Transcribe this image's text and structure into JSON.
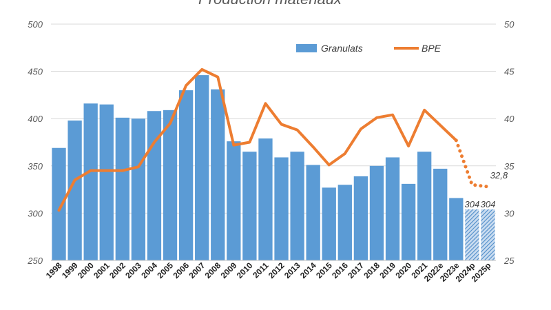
{
  "chart_data": {
    "type": "bar+line",
    "title": "Production matériaux",
    "categories": [
      "1998",
      "1999",
      "2000",
      "2001",
      "2002",
      "2003",
      "2004",
      "2005",
      "2006",
      "2007",
      "2008",
      "2009",
      "2010",
      "2011",
      "2012",
      "2013",
      "2014",
      "2015",
      "2016",
      "2017",
      "2018",
      "2019",
      "2020",
      "2021",
      "2022e",
      "2023e",
      "2024p",
      "2025p"
    ],
    "y_left": {
      "min": 250,
      "max": 500,
      "ticks": [
        "500",
        "450",
        "400",
        "350",
        "300",
        "250"
      ]
    },
    "y_right": {
      "min": 25,
      "max": 50,
      "ticks": [
        "50",
        "45",
        "40",
        "35",
        "30",
        "25"
      ]
    },
    "grid": true,
    "legend_position": "top-right",
    "series": [
      {
        "name": "Granulats",
        "type": "bar",
        "axis": "left",
        "color": "#5B9BD5",
        "values": [
          369,
          398,
          416,
          415,
          401,
          400,
          408,
          409,
          430,
          446,
          431,
          376,
          365,
          379,
          359,
          365,
          351,
          327,
          330,
          339,
          350,
          359,
          331,
          365,
          347,
          316,
          304,
          304
        ],
        "forecast_from_index": 26
      },
      {
        "name": "BPE",
        "type": "line",
        "axis": "right",
        "color": "#ED7D31",
        "values": [
          30.3,
          33.5,
          34.5,
          34.5,
          34.5,
          34.9,
          37.5,
          39.5,
          43.5,
          45.2,
          44.4,
          37.2,
          37.5,
          41.6,
          39.4,
          38.8,
          37.0,
          35.1,
          36.3,
          38.9,
          40.1,
          40.4,
          37.1,
          40.9,
          39.3,
          37.7,
          33.0,
          32.8
        ],
        "dotted_from_index": 25
      }
    ],
    "data_labels": [
      {
        "series": "Granulats",
        "category": "2024p",
        "text": "304"
      },
      {
        "series": "Granulats",
        "category": "2025p",
        "text": "304"
      },
      {
        "series": "BPE",
        "category": "2025p",
        "text": "32,8"
      }
    ]
  }
}
